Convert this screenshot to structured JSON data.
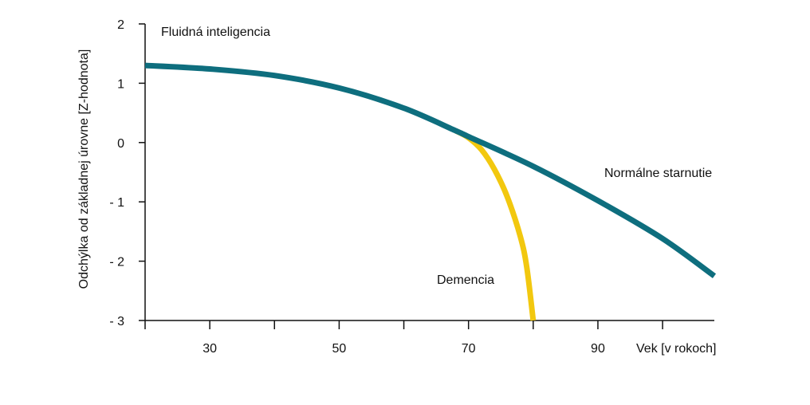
{
  "chart_data": {
    "type": "line",
    "title": "Fluidná inteligencia",
    "xlabel": "Vek [v rokoch]",
    "ylabel": "Odchýlka od základnej úrovne [Z-hodnota]",
    "xlim": [
      20,
      108
    ],
    "ylim": [
      -3,
      2
    ],
    "x_ticks": [
      20,
      30,
      40,
      50,
      60,
      70,
      80,
      90,
      100
    ],
    "x_tick_labels": [
      "30",
      "50",
      "70",
      "90"
    ],
    "x_tick_label_values": [
      30,
      50,
      70,
      90
    ],
    "y_ticks": [
      2,
      1,
      0,
      -1,
      -2,
      -3
    ],
    "y_tick_labels": [
      "2",
      "1",
      "0",
      "- 1",
      "- 2",
      "- 3"
    ],
    "grid": false,
    "series": [
      {
        "name": "Normálne starnutie",
        "color": "#0E6E7E",
        "x": [
          20,
          30,
          40,
          50,
          60,
          68,
          70,
          80,
          90,
          100,
          108
        ],
        "y": [
          1.3,
          1.24,
          1.13,
          0.92,
          0.58,
          0.2,
          0.1,
          -0.4,
          -0.98,
          -1.62,
          -2.25
        ]
      },
      {
        "name": "Demencia",
        "color": "#F2C80F",
        "x": [
          68,
          70,
          72,
          74,
          76,
          78,
          79,
          80
        ],
        "y": [
          0.2,
          0.08,
          -0.12,
          -0.45,
          -0.92,
          -1.58,
          -2.1,
          -3.0
        ]
      }
    ]
  }
}
